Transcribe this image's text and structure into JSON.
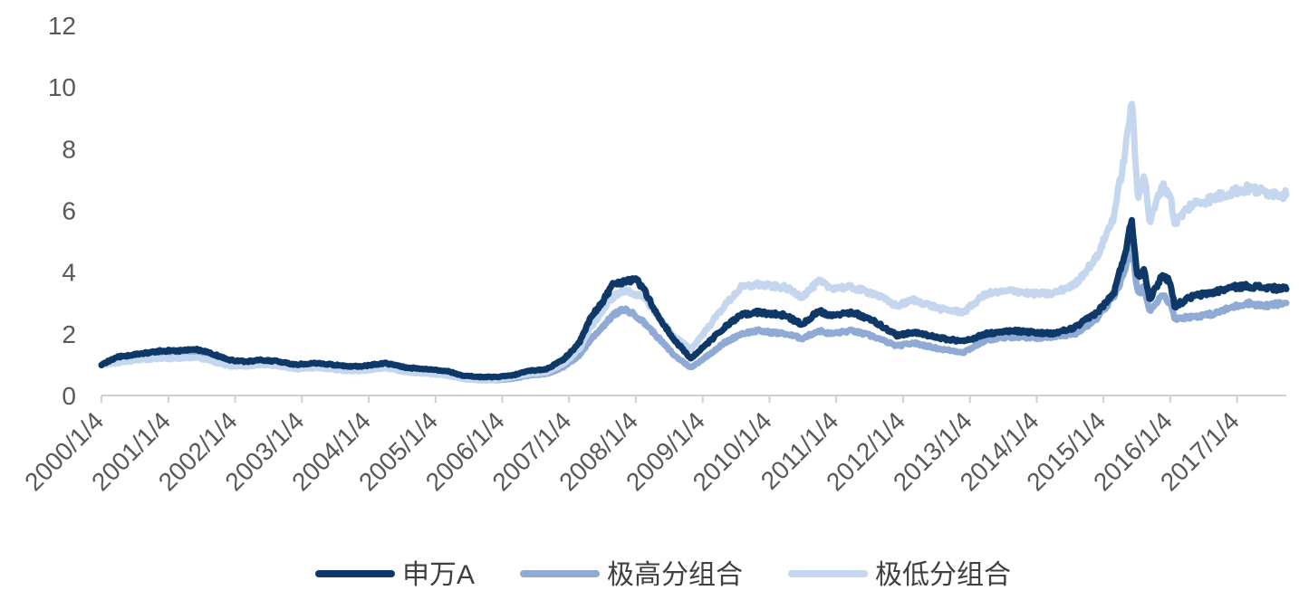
{
  "chart_data": {
    "type": "line",
    "title": "",
    "xlabel": "",
    "ylabel": "",
    "ylim": [
      0,
      12
    ],
    "yticks": [
      0,
      2,
      4,
      6,
      8,
      10,
      12
    ],
    "xlim": [
      "2000-01-04",
      "2017-09-30"
    ],
    "xtick_labels": [
      "2000/1/4",
      "2001/1/4",
      "2002/1/4",
      "2003/1/4",
      "2004/1/4",
      "2005/1/4",
      "2006/1/4",
      "2007/1/4",
      "2008/1/4",
      "2009/1/4",
      "2010/1/4",
      "2011/1/4",
      "2012/1/4",
      "2013/1/4",
      "2014/1/4",
      "2015/1/4",
      "2016/1/4",
      "2017/1/4"
    ],
    "grid": false,
    "legend_position": "bottom",
    "series": [
      {
        "name": "极高分组合",
        "color": "#8eaad5",
        "points": [
          [
            "2000-01-04",
            1.0
          ],
          [
            "2000-04-01",
            1.1
          ],
          [
            "2000-08-01",
            1.2
          ],
          [
            "2000-12-01",
            1.25
          ],
          [
            "2001-03-01",
            1.25
          ],
          [
            "2001-06-01",
            1.3
          ],
          [
            "2001-09-01",
            1.2
          ],
          [
            "2001-12-01",
            1.05
          ],
          [
            "2002-03-01",
            1.0
          ],
          [
            "2002-06-01",
            1.05
          ],
          [
            "2002-09-01",
            1.0
          ],
          [
            "2002-12-01",
            0.9
          ],
          [
            "2003-04-01",
            0.95
          ],
          [
            "2003-09-01",
            0.85
          ],
          [
            "2003-12-01",
            0.8
          ],
          [
            "2004-04-01",
            0.9
          ],
          [
            "2004-08-01",
            0.8
          ],
          [
            "2004-12-01",
            0.75
          ],
          [
            "2005-03-01",
            0.7
          ],
          [
            "2005-06-01",
            0.55
          ],
          [
            "2005-09-01",
            0.5
          ],
          [
            "2005-12-01",
            0.5
          ],
          [
            "2006-03-01",
            0.55
          ],
          [
            "2006-06-01",
            0.65
          ],
          [
            "2006-09-01",
            0.7
          ],
          [
            "2006-12-01",
            0.9
          ],
          [
            "2007-03-01",
            1.3
          ],
          [
            "2007-05-01",
            1.8
          ],
          [
            "2007-07-01",
            2.2
          ],
          [
            "2007-09-01",
            2.6
          ],
          [
            "2007-11-01",
            2.8
          ],
          [
            "2008-01-04",
            2.6
          ],
          [
            "2008-03-01",
            2.3
          ],
          [
            "2008-05-01",
            1.9
          ],
          [
            "2008-08-01",
            1.3
          ],
          [
            "2008-11-01",
            0.9
          ],
          [
            "2009-02-01",
            1.3
          ],
          [
            "2009-05-01",
            1.7
          ],
          [
            "2009-08-01",
            2.0
          ],
          [
            "2009-11-01",
            2.1
          ],
          [
            "2010-01-04",
            2.05
          ],
          [
            "2010-04-01",
            2.0
          ],
          [
            "2010-07-01",
            1.85
          ],
          [
            "2010-10-01",
            2.1
          ],
          [
            "2010-12-01",
            2.0
          ],
          [
            "2011-04-01",
            2.1
          ],
          [
            "2011-08-01",
            1.9
          ],
          [
            "2011-12-01",
            1.6
          ],
          [
            "2012-03-01",
            1.7
          ],
          [
            "2012-08-01",
            1.5
          ],
          [
            "2012-12-01",
            1.4
          ],
          [
            "2013-04-01",
            1.8
          ],
          [
            "2013-09-01",
            1.9
          ],
          [
            "2013-12-01",
            1.85
          ],
          [
            "2014-04-01",
            1.9
          ],
          [
            "2014-08-01",
            2.0
          ],
          [
            "2014-12-01",
            2.5
          ],
          [
            "2015-03-01",
            3.2
          ],
          [
            "2015-05-01",
            4.0
          ],
          [
            "2015-06-08",
            4.9
          ],
          [
            "2015-07-10",
            3.3
          ],
          [
            "2015-08-15",
            3.5
          ],
          [
            "2015-09-15",
            2.7
          ],
          [
            "2015-11-20",
            3.3
          ],
          [
            "2016-01-04",
            3.0
          ],
          [
            "2016-01-28",
            2.5
          ],
          [
            "2016-05-01",
            2.55
          ],
          [
            "2016-09-01",
            2.65
          ],
          [
            "2016-12-01",
            2.85
          ],
          [
            "2017-03-01",
            3.0
          ],
          [
            "2017-06-01",
            2.9
          ],
          [
            "2017-09-30",
            3.0
          ]
        ]
      },
      {
        "name": "极低分组合",
        "color": "#c5d7ef",
        "points": [
          [
            "2000-01-04",
            1.0
          ],
          [
            "2000-04-01",
            1.05
          ],
          [
            "2000-08-01",
            1.15
          ],
          [
            "2000-12-01",
            1.2
          ],
          [
            "2001-03-01",
            1.2
          ],
          [
            "2001-06-01",
            1.25
          ],
          [
            "2001-09-01",
            1.1
          ],
          [
            "2001-12-01",
            0.95
          ],
          [
            "2002-03-01",
            0.95
          ],
          [
            "2002-06-01",
            1.0
          ],
          [
            "2002-09-01",
            0.95
          ],
          [
            "2002-12-01",
            0.85
          ],
          [
            "2003-04-01",
            0.9
          ],
          [
            "2003-09-01",
            0.8
          ],
          [
            "2003-12-01",
            0.8
          ],
          [
            "2004-04-01",
            0.9
          ],
          [
            "2004-08-01",
            0.75
          ],
          [
            "2004-12-01",
            0.7
          ],
          [
            "2005-03-01",
            0.65
          ],
          [
            "2005-06-01",
            0.55
          ],
          [
            "2005-09-01",
            0.5
          ],
          [
            "2005-12-01",
            0.5
          ],
          [
            "2006-03-01",
            0.6
          ],
          [
            "2006-06-01",
            0.7
          ],
          [
            "2006-09-01",
            0.75
          ],
          [
            "2006-12-01",
            1.0
          ],
          [
            "2007-03-01",
            1.5
          ],
          [
            "2007-05-01",
            2.2
          ],
          [
            "2007-07-01",
            2.7
          ],
          [
            "2007-09-01",
            3.2
          ],
          [
            "2007-11-01",
            3.4
          ],
          [
            "2008-01-04",
            3.3
          ],
          [
            "2008-03-01",
            3.1
          ],
          [
            "2008-05-01",
            2.6
          ],
          [
            "2008-08-01",
            1.9
          ],
          [
            "2008-11-01",
            1.5
          ],
          [
            "2009-02-01",
            2.2
          ],
          [
            "2009-05-01",
            2.9
          ],
          [
            "2009-08-01",
            3.5
          ],
          [
            "2009-11-01",
            3.6
          ],
          [
            "2010-01-04",
            3.55
          ],
          [
            "2010-04-01",
            3.5
          ],
          [
            "2010-07-01",
            3.2
          ],
          [
            "2010-10-01",
            3.7
          ],
          [
            "2010-12-01",
            3.5
          ],
          [
            "2011-04-01",
            3.5
          ],
          [
            "2011-08-01",
            3.3
          ],
          [
            "2011-12-01",
            2.9
          ],
          [
            "2012-03-01",
            3.1
          ],
          [
            "2012-08-01",
            2.8
          ],
          [
            "2012-12-01",
            2.7
          ],
          [
            "2013-04-01",
            3.3
          ],
          [
            "2013-09-01",
            3.4
          ],
          [
            "2013-12-01",
            3.3
          ],
          [
            "2014-04-01",
            3.3
          ],
          [
            "2014-08-01",
            3.6
          ],
          [
            "2014-12-01",
            4.5
          ],
          [
            "2015-03-01",
            5.8
          ],
          [
            "2015-05-01",
            7.8
          ],
          [
            "2015-06-08",
            9.6
          ],
          [
            "2015-07-10",
            6.4
          ],
          [
            "2015-08-15",
            7.2
          ],
          [
            "2015-09-15",
            5.6
          ],
          [
            "2015-11-20",
            6.8
          ],
          [
            "2016-01-04",
            6.5
          ],
          [
            "2016-01-28",
            5.6
          ],
          [
            "2016-05-01",
            6.2
          ],
          [
            "2016-09-01",
            6.4
          ],
          [
            "2016-12-01",
            6.6
          ],
          [
            "2017-03-01",
            6.7
          ],
          [
            "2017-06-01",
            6.6
          ],
          [
            "2017-09-30",
            6.5
          ]
        ]
      },
      {
        "name": "申万A",
        "color": "#0d3868",
        "points": [
          [
            "2000-01-04",
            1.0
          ],
          [
            "2000-04-01",
            1.25
          ],
          [
            "2000-08-01",
            1.35
          ],
          [
            "2000-12-01",
            1.45
          ],
          [
            "2001-03-01",
            1.45
          ],
          [
            "2001-06-01",
            1.5
          ],
          [
            "2001-09-01",
            1.35
          ],
          [
            "2001-12-01",
            1.15
          ],
          [
            "2002-03-01",
            1.1
          ],
          [
            "2002-06-01",
            1.15
          ],
          [
            "2002-09-01",
            1.1
          ],
          [
            "2002-12-01",
            1.0
          ],
          [
            "2003-04-01",
            1.05
          ],
          [
            "2003-09-01",
            0.95
          ],
          [
            "2003-12-01",
            0.95
          ],
          [
            "2004-04-01",
            1.05
          ],
          [
            "2004-08-01",
            0.9
          ],
          [
            "2004-12-01",
            0.85
          ],
          [
            "2005-03-01",
            0.8
          ],
          [
            "2005-06-01",
            0.65
          ],
          [
            "2005-09-01",
            0.6
          ],
          [
            "2005-12-01",
            0.6
          ],
          [
            "2006-03-01",
            0.65
          ],
          [
            "2006-06-01",
            0.8
          ],
          [
            "2006-09-01",
            0.85
          ],
          [
            "2006-12-01",
            1.15
          ],
          [
            "2007-03-01",
            1.7
          ],
          [
            "2007-05-01",
            2.5
          ],
          [
            "2007-07-01",
            3.0
          ],
          [
            "2007-09-01",
            3.6
          ],
          [
            "2007-11-01",
            3.7
          ],
          [
            "2008-01-04",
            3.8
          ],
          [
            "2008-03-01",
            3.3
          ],
          [
            "2008-05-01",
            2.6
          ],
          [
            "2008-08-01",
            1.8
          ],
          [
            "2008-11-01",
            1.2
          ],
          [
            "2009-02-01",
            1.7
          ],
          [
            "2009-05-01",
            2.2
          ],
          [
            "2009-08-01",
            2.6
          ],
          [
            "2009-11-01",
            2.7
          ],
          [
            "2010-01-04",
            2.65
          ],
          [
            "2010-04-01",
            2.6
          ],
          [
            "2010-07-01",
            2.3
          ],
          [
            "2010-10-01",
            2.75
          ],
          [
            "2010-12-01",
            2.6
          ],
          [
            "2011-04-01",
            2.7
          ],
          [
            "2011-08-01",
            2.4
          ],
          [
            "2011-12-01",
            1.95
          ],
          [
            "2012-03-01",
            2.05
          ],
          [
            "2012-08-01",
            1.85
          ],
          [
            "2012-12-01",
            1.75
          ],
          [
            "2013-04-01",
            2.0
          ],
          [
            "2013-09-01",
            2.1
          ],
          [
            "2013-12-01",
            2.05
          ],
          [
            "2014-04-01",
            2.0
          ],
          [
            "2014-08-01",
            2.2
          ],
          [
            "2014-12-01",
            2.7
          ],
          [
            "2015-03-01",
            3.3
          ],
          [
            "2015-05-01",
            4.6
          ],
          [
            "2015-06-08",
            5.7
          ],
          [
            "2015-07-10",
            3.8
          ],
          [
            "2015-08-15",
            4.1
          ],
          [
            "2015-09-15",
            3.1
          ],
          [
            "2015-11-20",
            3.9
          ],
          [
            "2016-01-04",
            3.7
          ],
          [
            "2016-01-28",
            2.9
          ],
          [
            "2016-05-01",
            3.2
          ],
          [
            "2016-09-01",
            3.35
          ],
          [
            "2016-12-01",
            3.5
          ],
          [
            "2017-03-01",
            3.55
          ],
          [
            "2017-06-01",
            3.5
          ],
          [
            "2017-09-30",
            3.45
          ]
        ]
      }
    ],
    "legend_order": [
      "申万A",
      "极高分组合",
      "极低分组合"
    ]
  }
}
